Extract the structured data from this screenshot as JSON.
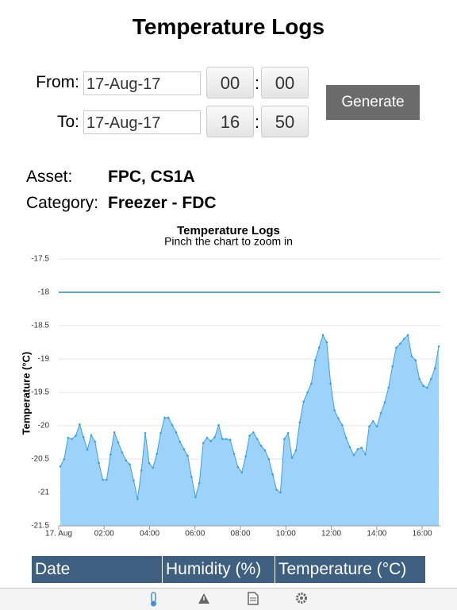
{
  "header": {
    "title": "Temperature Logs"
  },
  "form": {
    "from": {
      "label": "From:",
      "date": "17-Aug-17",
      "hour": "00",
      "separator": ":",
      "minute": "00"
    },
    "to": {
      "label": "To:",
      "date": "17-Aug-17",
      "hour": "16",
      "separator": ":",
      "minute": "50"
    },
    "button": "Generate"
  },
  "info": [
    {
      "label": "Asset:",
      "value": "FPC, CS1A"
    },
    {
      "label": "Category:",
      "value": "Freezer - FDC"
    }
  ],
  "chart_data": {
    "type": "area",
    "title": "Temperature Logs",
    "subtitle": "Pinch the chart to zoom in",
    "y_label": "Temperature (°C)",
    "color": "#3aa0e6",
    "fill_color": "#9dd3fb",
    "x": [
      0.07,
      0.24,
      0.41,
      0.58,
      0.75,
      0.92,
      1.09,
      1.26,
      1.43,
      1.6,
      1.77,
      1.94,
      2.11,
      2.28,
      2.45,
      2.62,
      2.79,
      2.96,
      3.13,
      3.3,
      3.47,
      3.64,
      3.81,
      3.98,
      4.15,
      4.32,
      4.49,
      4.66,
      4.83,
      5.0,
      5.17,
      5.34,
      5.51,
      5.68,
      5.85,
      6.02,
      6.19,
      6.36,
      6.53,
      6.7,
      6.87,
      7.04,
      7.21,
      7.38,
      7.55,
      7.72,
      7.89,
      8.06,
      8.23,
      8.4,
      8.57,
      8.74,
      8.91,
      9.08,
      9.25,
      9.42,
      9.59,
      9.76,
      9.93,
      10.1,
      10.27,
      10.44,
      10.61,
      10.78,
      10.95,
      11.12,
      11.29,
      11.46,
      11.63,
      11.8,
      11.97,
      12.14,
      12.31,
      12.48,
      12.65,
      12.82,
      12.99,
      13.16,
      13.33,
      13.5,
      13.67,
      13.84,
      14.01,
      14.18,
      14.35,
      14.52,
      14.69,
      14.86,
      15.03,
      15.2,
      15.37,
      15.54,
      15.71,
      15.88,
      16.05,
      16.22,
      16.39,
      16.56,
      16.73
    ],
    "values": [
      -20.61,
      -20.5,
      -20.18,
      -20.2,
      -20.15,
      -19.98,
      -20.17,
      -20.36,
      -20.14,
      -20.24,
      -20.56,
      -20.81,
      -20.81,
      -20.43,
      -20.1,
      -20.25,
      -20.4,
      -20.52,
      -20.58,
      -20.82,
      -21.1,
      -20.67,
      -20.11,
      -20.56,
      -20.63,
      -20.42,
      -20.11,
      -19.88,
      -19.88,
      -19.99,
      -20.1,
      -20.24,
      -20.35,
      -20.45,
      -20.77,
      -21.07,
      -20.86,
      -20.26,
      -20.18,
      -20.23,
      -20.17,
      -19.99,
      -20.2,
      -20.2,
      -20.21,
      -20.42,
      -20.62,
      -20.7,
      -20.46,
      -20.15,
      -20.1,
      -20.2,
      -20.3,
      -20.37,
      -20.5,
      -20.73,
      -20.96,
      -21.0,
      -20.2,
      -20.11,
      -20.48,
      -20.37,
      -19.95,
      -19.64,
      -19.5,
      -19.37,
      -19.02,
      -18.83,
      -18.64,
      -18.75,
      -19.37,
      -19.77,
      -19.89,
      -19.99,
      -20.18,
      -20.32,
      -20.44,
      -20.35,
      -20.33,
      -20.43,
      -20.01,
      -19.93,
      -20.01,
      -19.81,
      -19.65,
      -19.43,
      -19.11,
      -18.83,
      -18.77,
      -18.7,
      -18.64,
      -18.96,
      -19.02,
      -19.3,
      -19.4,
      -19.43,
      -19.3,
      -19.14,
      -18.81
    ],
    "plot_line": -18,
    "plot_line_color": "#2f8aa3",
    "xlim": [
      0,
      16.8
    ],
    "xticks": [
      {
        "value": 0,
        "label": "17. Aug"
      },
      {
        "value": 2,
        "label": "02:00"
      },
      {
        "value": 4,
        "label": "04:00"
      },
      {
        "value": 6,
        "label": "06:00"
      },
      {
        "value": 8,
        "label": "08:00"
      },
      {
        "value": 10,
        "label": "10:00"
      },
      {
        "value": 12,
        "label": "12:00"
      },
      {
        "value": 14,
        "label": "14:00"
      },
      {
        "value": 16,
        "label": "16:00"
      }
    ],
    "ylim": [
      -21.5,
      -17.5
    ],
    "yticks": [
      -21.5,
      -21,
      -20.5,
      -20,
      -19.5,
      -19,
      -18.5,
      -18,
      -17.5
    ],
    "grid": true
  },
  "table": {
    "columns": [
      "Date",
      "Humidity (%)",
      "Temperature (°C)"
    ]
  }
}
